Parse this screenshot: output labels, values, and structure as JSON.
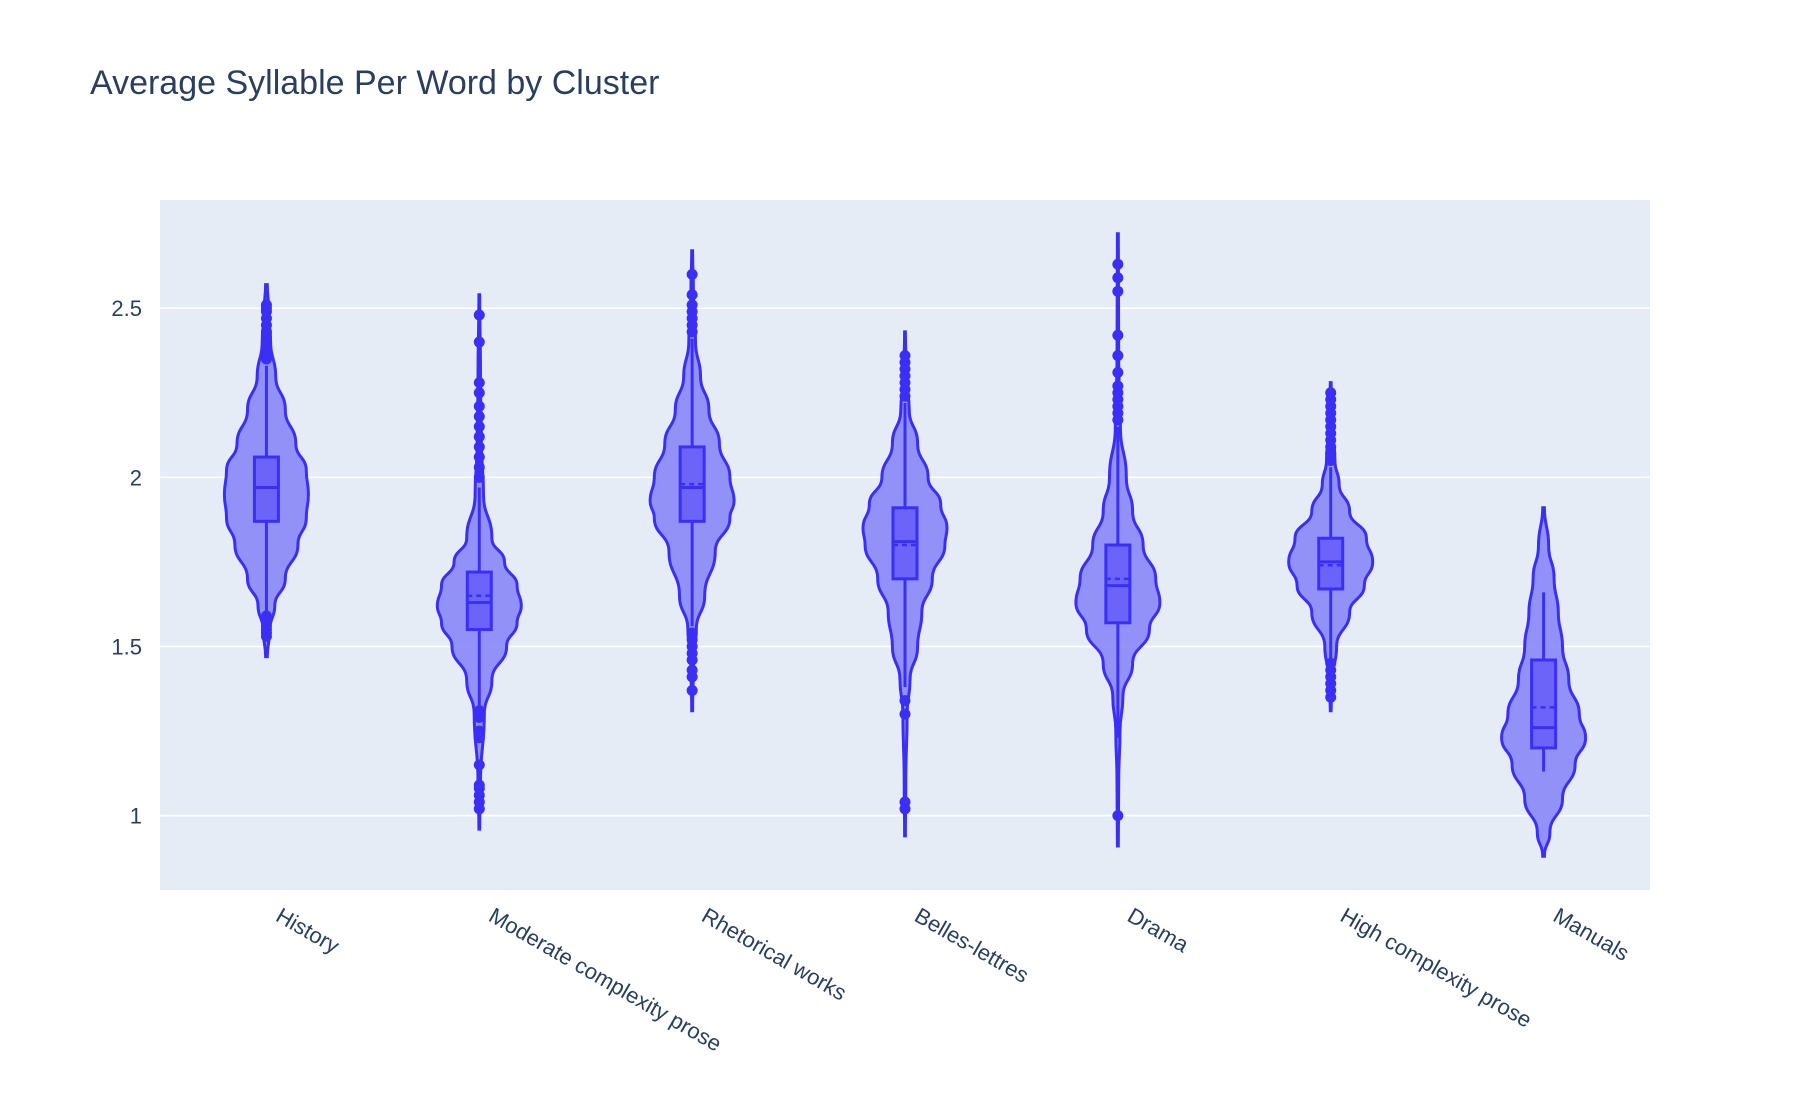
{
  "chart_data": {
    "type": "violin",
    "title": "Average Syllable Per Word by Cluster",
    "xlabel": "",
    "ylabel": "",
    "ylim": [
      0.78,
      2.82
    ],
    "yticks": [
      1,
      1.5,
      2,
      2.5
    ],
    "ytick_labels": [
      "1",
      "1.5",
      "2",
      "2.5"
    ],
    "grid": true,
    "colors": {
      "fill": "#8c8cf7",
      "line": "#3b2ff5",
      "box": "#6c63f8",
      "plot_bg": "#e5ecf6",
      "grid": "#ffffff",
      "text": "#2a3f5f"
    },
    "categories": [
      "History",
      "Moderate complexity prose",
      "Rhetorical works",
      "Belles-lettres",
      "Drama",
      "High complexity prose",
      "Manuals"
    ],
    "series": [
      {
        "category": "History",
        "min": 1.47,
        "max": 2.57,
        "q1": 1.87,
        "median": 1.97,
        "q3": 2.06,
        "mean": 1.97,
        "lower_fence": 1.6,
        "upper_fence": 2.33,
        "outliers": [
          1.53,
          1.54,
          1.55,
          1.56,
          1.57,
          1.58,
          1.59,
          2.35,
          2.37,
          2.39,
          2.41,
          2.43,
          2.45,
          2.47,
          2.49,
          2.5,
          2.51
        ],
        "density": [
          [
            1.47,
            0.02
          ],
          [
            1.55,
            0.08
          ],
          [
            1.62,
            0.2
          ],
          [
            1.7,
            0.45
          ],
          [
            1.8,
            0.75
          ],
          [
            1.88,
            0.95
          ],
          [
            1.95,
            1.0
          ],
          [
            2.02,
            0.95
          ],
          [
            2.1,
            0.7
          ],
          [
            2.2,
            0.45
          ],
          [
            2.3,
            0.22
          ],
          [
            2.4,
            0.1
          ],
          [
            2.5,
            0.05
          ],
          [
            2.57,
            0.02
          ]
        ]
      },
      {
        "category": "Moderate complexity prose",
        "min": 0.96,
        "max": 2.54,
        "q1": 1.55,
        "median": 1.63,
        "q3": 1.72,
        "mean": 1.65,
        "lower_fence": 1.32,
        "upper_fence": 1.97,
        "outliers": [
          1.02,
          1.04,
          1.06,
          1.08,
          1.09,
          1.15,
          1.23,
          1.25,
          1.29,
          1.31,
          2.0,
          2.03,
          2.06,
          2.09,
          2.12,
          2.15,
          2.18,
          2.21,
          2.25,
          2.28,
          2.4,
          2.48
        ],
        "density": [
          [
            0.96,
            0.01
          ],
          [
            1.1,
            0.03
          ],
          [
            1.3,
            0.12
          ],
          [
            1.4,
            0.3
          ],
          [
            1.5,
            0.65
          ],
          [
            1.57,
            0.9
          ],
          [
            1.62,
            1.0
          ],
          [
            1.68,
            0.9
          ],
          [
            1.75,
            0.6
          ],
          [
            1.82,
            0.3
          ],
          [
            1.95,
            0.1
          ],
          [
            2.1,
            0.05
          ],
          [
            2.3,
            0.03
          ],
          [
            2.54,
            0.01
          ]
        ]
      },
      {
        "category": "Rhetorical works",
        "min": 1.31,
        "max": 2.67,
        "q1": 1.87,
        "median": 1.97,
        "q3": 2.09,
        "mean": 1.98,
        "lower_fence": 1.56,
        "upper_fence": 2.41,
        "outliers": [
          1.37,
          1.41,
          1.43,
          1.46,
          1.48,
          1.5,
          1.52,
          1.54,
          2.43,
          2.45,
          2.47,
          2.49,
          2.51,
          2.54,
          2.6
        ],
        "density": [
          [
            1.31,
            0.01
          ],
          [
            1.45,
            0.03
          ],
          [
            1.55,
            0.1
          ],
          [
            1.65,
            0.3
          ],
          [
            1.78,
            0.55
          ],
          [
            1.88,
            0.9
          ],
          [
            1.93,
            1.0
          ],
          [
            2.0,
            0.9
          ],
          [
            2.1,
            0.65
          ],
          [
            2.2,
            0.4
          ],
          [
            2.3,
            0.2
          ],
          [
            2.4,
            0.08
          ],
          [
            2.55,
            0.03
          ],
          [
            2.67,
            0.01
          ]
        ]
      },
      {
        "category": "Belles-lettres",
        "min": 0.94,
        "max": 2.43,
        "q1": 1.7,
        "median": 1.81,
        "q3": 1.91,
        "mean": 1.8,
        "lower_fence": 1.38,
        "upper_fence": 2.22,
        "outliers": [
          1.02,
          1.04,
          1.3,
          1.34,
          2.24,
          2.26,
          2.28,
          2.3,
          2.32,
          2.34,
          2.36
        ],
        "density": [
          [
            0.94,
            0.01
          ],
          [
            1.1,
            0.02
          ],
          [
            1.3,
            0.05
          ],
          [
            1.4,
            0.12
          ],
          [
            1.5,
            0.3
          ],
          [
            1.6,
            0.4
          ],
          [
            1.7,
            0.65
          ],
          [
            1.8,
            0.95
          ],
          [
            1.85,
            1.0
          ],
          [
            1.92,
            0.85
          ],
          [
            2.0,
            0.55
          ],
          [
            2.1,
            0.3
          ],
          [
            2.2,
            0.1
          ],
          [
            2.3,
            0.03
          ],
          [
            2.43,
            0.01
          ]
        ]
      },
      {
        "category": "Drama",
        "min": 0.91,
        "max": 2.72,
        "q1": 1.57,
        "median": 1.68,
        "q3": 1.8,
        "mean": 1.7,
        "lower_fence": 1.23,
        "upper_fence": 2.15,
        "outliers": [
          1.0,
          2.17,
          2.19,
          2.21,
          2.23,
          2.25,
          2.27,
          2.31,
          2.36,
          2.42,
          2.55,
          2.59,
          2.63
        ],
        "density": [
          [
            0.91,
            0.01
          ],
          [
            1.1,
            0.02
          ],
          [
            1.25,
            0.05
          ],
          [
            1.35,
            0.12
          ],
          [
            1.45,
            0.35
          ],
          [
            1.55,
            0.75
          ],
          [
            1.63,
            1.0
          ],
          [
            1.7,
            0.9
          ],
          [
            1.8,
            0.6
          ],
          [
            1.9,
            0.35
          ],
          [
            2.0,
            0.2
          ],
          [
            2.15,
            0.06
          ],
          [
            2.35,
            0.02
          ],
          [
            2.72,
            0.01
          ]
        ]
      },
      {
        "category": "High complexity prose",
        "min": 1.31,
        "max": 2.28,
        "q1": 1.67,
        "median": 1.75,
        "q3": 1.82,
        "mean": 1.74,
        "lower_fence": 1.45,
        "upper_fence": 2.03,
        "outliers": [
          1.35,
          1.37,
          1.39,
          1.41,
          1.43,
          1.45,
          2.05,
          2.07,
          2.09,
          2.11,
          2.13,
          2.15,
          2.17,
          2.19,
          2.21,
          2.23,
          2.25
        ],
        "density": [
          [
            1.31,
            0.01
          ],
          [
            1.4,
            0.04
          ],
          [
            1.5,
            0.14
          ],
          [
            1.6,
            0.45
          ],
          [
            1.68,
            0.8
          ],
          [
            1.75,
            1.0
          ],
          [
            1.82,
            0.85
          ],
          [
            1.9,
            0.45
          ],
          [
            1.98,
            0.2
          ],
          [
            2.05,
            0.1
          ],
          [
            2.15,
            0.05
          ],
          [
            2.28,
            0.01
          ]
        ]
      },
      {
        "category": "Manuals",
        "min": 0.88,
        "max": 1.91,
        "q1": 1.2,
        "median": 1.26,
        "q3": 1.46,
        "mean": 1.32,
        "lower_fence": 1.13,
        "upper_fence": 1.66,
        "outliers": [],
        "density": [
          [
            0.88,
            0.02
          ],
          [
            0.95,
            0.15
          ],
          [
            1.05,
            0.45
          ],
          [
            1.15,
            0.75
          ],
          [
            1.23,
            1.0
          ],
          [
            1.3,
            0.85
          ],
          [
            1.4,
            0.6
          ],
          [
            1.5,
            0.45
          ],
          [
            1.6,
            0.35
          ],
          [
            1.7,
            0.25
          ],
          [
            1.8,
            0.12
          ],
          [
            1.91,
            0.02
          ]
        ]
      }
    ]
  }
}
